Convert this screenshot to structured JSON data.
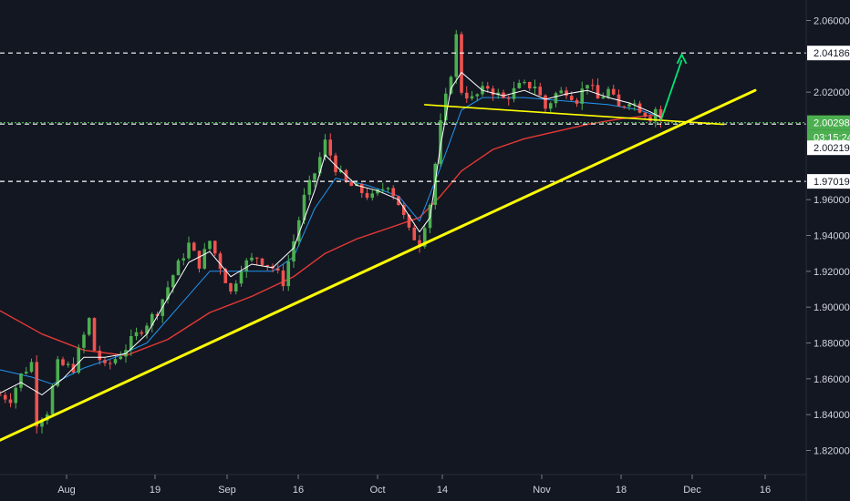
{
  "chart_data": {
    "type": "candlestick",
    "background": "#131722",
    "x_axis": {
      "ticks": [
        "Aug",
        "19",
        "Sep",
        "16",
        "Oct",
        "14",
        "Nov",
        "18",
        "Dec",
        "16"
      ]
    },
    "y_axis": {
      "side": "right",
      "ylim": [
        1.81,
        2.07
      ],
      "ticks": [
        "2.06000",
        "2.04186",
        "2.02000",
        "2.00298",
        "03:15:24",
        "2.00219",
        "1.97019",
        "1.96000",
        "1.94000",
        "1.92000",
        "1.90000",
        "1.88000",
        "1.86000",
        "1.84000",
        "1.82000"
      ]
    },
    "grid": false,
    "levels": [
      {
        "value": 2.04186,
        "label": "2.04186",
        "style": "dashed",
        "color": "#ffffff",
        "label_bg": "#ffffff"
      },
      {
        "value": 2.00298,
        "label": "2.00298",
        "style": "dotted",
        "color": "#4caf50",
        "label_bg": "#4caf50",
        "countdown": "03:15:24"
      },
      {
        "value": 2.00219,
        "label": "2.00219",
        "style": "dashed",
        "color": "#ffffff",
        "label_bg": "#ffffff"
      },
      {
        "value": 1.97019,
        "label": "1.97019",
        "style": "dashed",
        "color": "#ffffff",
        "label_bg": "#ffffff"
      }
    ],
    "colors": {
      "up": "#4caf50",
      "down": "#ef5350",
      "ma_fast": "#ffffff",
      "ma_mid": "#2196f3",
      "ma_slow": "#e53935",
      "trendline": "#ffff00",
      "arrow": "#00e676"
    },
    "price_path": [
      [
        0,
        1.851
      ],
      [
        2,
        1.849
      ],
      [
        4,
        1.862
      ],
      [
        6,
        1.869
      ],
      [
        7,
        1.836
      ],
      [
        9,
        1.842
      ],
      [
        11,
        1.868
      ],
      [
        14,
        1.866
      ],
      [
        17,
        1.893
      ],
      [
        18,
        1.876
      ],
      [
        20,
        1.866
      ],
      [
        23,
        1.874
      ],
      [
        27,
        1.888
      ],
      [
        30,
        1.898
      ],
      [
        33,
        1.918
      ],
      [
        36,
        1.935
      ],
      [
        38,
        1.924
      ],
      [
        40,
        1.937
      ],
      [
        42,
        1.923
      ],
      [
        44,
        1.908
      ],
      [
        46,
        1.923
      ],
      [
        49,
        1.928
      ],
      [
        52,
        1.922
      ],
      [
        54,
        1.914
      ],
      [
        56,
        1.937
      ],
      [
        58,
        1.961
      ],
      [
        60,
        1.975
      ],
      [
        62,
        1.992
      ],
      [
        64,
        1.978
      ],
      [
        66,
        1.969
      ],
      [
        68,
        1.966
      ],
      [
        71,
        1.961
      ],
      [
        74,
        1.969
      ],
      [
        76,
        1.958
      ],
      [
        78,
        1.942
      ],
      [
        80,
        1.936
      ],
      [
        82,
        1.958
      ],
      [
        84,
        2.002
      ],
      [
        86,
        2.031
      ],
      [
        87,
        2.051
      ],
      [
        88,
        2.021
      ],
      [
        90,
        2.016
      ],
      [
        93,
        2.023
      ],
      [
        96,
        2.016
      ],
      [
        99,
        2.023
      ],
      [
        102,
        2.024
      ],
      [
        104,
        2.011
      ],
      [
        106,
        2.019
      ],
      [
        108,
        2.021
      ],
      [
        110,
        2.016
      ],
      [
        112,
        2.026
      ],
      [
        114,
        2.016
      ],
      [
        116,
        2.021
      ],
      [
        118,
        2.011
      ],
      [
        120,
        2.016
      ],
      [
        122,
        2.011
      ],
      [
        124,
        2.006
      ],
      [
        125,
        2.011
      ],
      [
        126,
        2.004
      ]
    ],
    "ma_fast_path": [
      [
        0,
        1.852
      ],
      [
        4,
        1.858
      ],
      [
        8,
        1.851
      ],
      [
        12,
        1.86
      ],
      [
        16,
        1.872
      ],
      [
        20,
        1.872
      ],
      [
        24,
        1.874
      ],
      [
        28,
        1.885
      ],
      [
        32,
        1.905
      ],
      [
        36,
        1.925
      ],
      [
        40,
        1.931
      ],
      [
        44,
        1.917
      ],
      [
        48,
        1.924
      ],
      [
        52,
        1.922
      ],
      [
        56,
        1.933
      ],
      [
        60,
        1.965
      ],
      [
        62,
        1.985
      ],
      [
        64,
        1.979
      ],
      [
        68,
        1.968
      ],
      [
        72,
        1.965
      ],
      [
        76,
        1.96
      ],
      [
        80,
        1.942
      ],
      [
        82,
        1.95
      ],
      [
        84,
        1.99
      ],
      [
        86,
        2.022
      ],
      [
        88,
        2.031
      ],
      [
        92,
        2.021
      ],
      [
        96,
        2.018
      ],
      [
        100,
        2.021
      ],
      [
        104,
        2.016
      ],
      [
        108,
        2.019
      ],
      [
        112,
        2.021
      ],
      [
        116,
        2.017
      ],
      [
        120,
        2.014
      ],
      [
        124,
        2.009
      ],
      [
        126,
        2.006
      ]
    ],
    "ma_mid_path": [
      [
        0,
        1.865
      ],
      [
        6,
        1.861
      ],
      [
        10,
        1.857
      ],
      [
        16,
        1.866
      ],
      [
        22,
        1.872
      ],
      [
        28,
        1.88
      ],
      [
        34,
        1.9
      ],
      [
        40,
        1.92
      ],
      [
        46,
        1.92
      ],
      [
        52,
        1.92
      ],
      [
        56,
        1.928
      ],
      [
        60,
        1.955
      ],
      [
        64,
        1.972
      ],
      [
        70,
        1.968
      ],
      [
        76,
        1.962
      ],
      [
        80,
        1.948
      ],
      [
        84,
        1.978
      ],
      [
        88,
        2.01
      ],
      [
        92,
        2.017
      ],
      [
        100,
        2.017
      ],
      [
        108,
        2.015
      ],
      [
        116,
        2.013
      ],
      [
        122,
        2.01
      ],
      [
        126,
        2.006
      ]
    ],
    "ma_slow_path": [
      [
        0,
        1.898
      ],
      [
        8,
        1.885
      ],
      [
        16,
        1.876
      ],
      [
        24,
        1.873
      ],
      [
        32,
        1.882
      ],
      [
        40,
        1.897
      ],
      [
        48,
        1.906
      ],
      [
        56,
        1.917
      ],
      [
        62,
        1.93
      ],
      [
        68,
        1.938
      ],
      [
        74,
        1.944
      ],
      [
        80,
        1.95
      ],
      [
        84,
        1.962
      ],
      [
        88,
        1.976
      ],
      [
        94,
        1.988
      ],
      [
        100,
        1.994
      ],
      [
        106,
        1.998
      ],
      [
        112,
        2.002
      ],
      [
        118,
        2.005
      ],
      [
        124,
        2.007
      ],
      [
        126,
        2.007
      ]
    ],
    "trendlines": [
      {
        "name": "uptrend",
        "from": [
          -2,
          1.823
        ],
        "to": [
          144,
          2.021
        ]
      },
      {
        "name": "flat_support",
        "from": [
          81,
          2.013
        ],
        "to": [
          138,
          2.002
        ]
      }
    ],
    "arrow": {
      "from": [
        126,
        2.004
      ],
      "to": [
        130,
        2.041
      ]
    }
  }
}
